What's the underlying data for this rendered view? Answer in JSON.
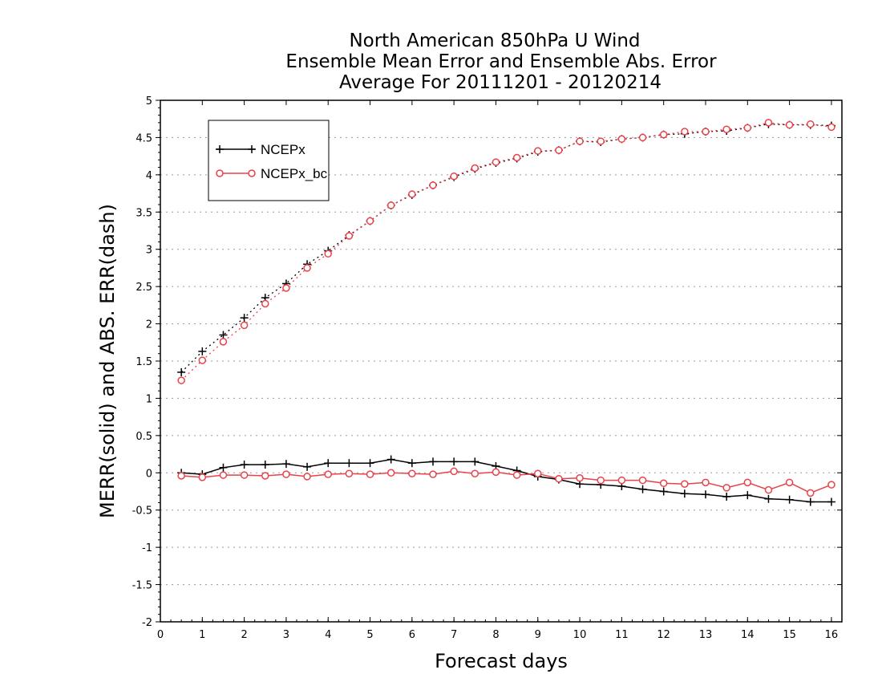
{
  "chart_data": {
    "type": "line",
    "title": "North American 850hPa U Wind",
    "subtitle": [
      "Ensemble Mean Error and Ensemble Abs. Error",
      "Average For 20111201 - 20120214"
    ],
    "xlabel": "Forecast days",
    "ylabel": "MERR(solid) and ABS. ERR(dash)",
    "xlim": [
      0,
      16.25
    ],
    "ylim": [
      -2,
      5
    ],
    "xticks": [
      0,
      1,
      2,
      3,
      4,
      5,
      6,
      7,
      8,
      9,
      10,
      11,
      12,
      13,
      14,
      15,
      16
    ],
    "yticks": [
      -2,
      -1.5,
      -1,
      -0.5,
      0,
      0.5,
      1,
      1.5,
      2,
      2.5,
      3,
      3.5,
      4,
      4.5,
      5
    ],
    "ytick_labels": [
      "-2",
      "-1.5",
      "-1",
      "-0.5",
      "0",
      "0.5",
      "1",
      "1.5",
      "2",
      "2.5",
      "3",
      "3.5",
      "4",
      "4.5",
      "5"
    ],
    "grid": "dotted horizontal",
    "legend": "top-left",
    "x": [
      0.5,
      1.0,
      1.5,
      2.0,
      2.5,
      3.0,
      3.5,
      4.0,
      4.5,
      5.0,
      5.5,
      6.0,
      6.5,
      7.0,
      7.5,
      8.0,
      8.5,
      9.0,
      9.5,
      10.0,
      10.5,
      11.0,
      11.5,
      12.0,
      12.5,
      13.0,
      13.5,
      14.0,
      14.5,
      15.0,
      15.5,
      16.0
    ],
    "series": [
      {
        "name": "NCEPx",
        "color": "#000000",
        "marker": "plus",
        "merr": [
          0.0,
          -0.02,
          0.07,
          0.11,
          0.11,
          0.12,
          0.08,
          0.13,
          0.13,
          0.13,
          0.18,
          0.13,
          0.15,
          0.15,
          0.15,
          0.09,
          0.03,
          -0.05,
          -0.09,
          -0.15,
          -0.16,
          -0.18,
          -0.22,
          -0.25,
          -0.28,
          -0.29,
          -0.32,
          -0.3,
          -0.35,
          -0.36,
          -0.39,
          -0.39
        ],
        "abs_err": [
          1.35,
          1.63,
          1.85,
          2.08,
          2.35,
          2.54,
          2.8,
          2.98,
          3.19,
          3.38,
          3.59,
          3.73,
          3.86,
          3.97,
          4.08,
          4.16,
          4.22,
          4.31,
          4.33,
          4.45,
          4.44,
          4.48,
          4.5,
          4.54,
          4.55,
          4.58,
          4.59,
          4.63,
          4.68,
          4.67,
          4.67,
          4.66
        ]
      },
      {
        "name": "NCEPx_bc",
        "color": "#e8424a",
        "marker": "circle",
        "merr": [
          -0.04,
          -0.06,
          -0.03,
          -0.03,
          -0.04,
          -0.02,
          -0.05,
          -0.02,
          -0.01,
          -0.02,
          0.0,
          -0.01,
          -0.02,
          0.02,
          -0.01,
          0.01,
          -0.03,
          -0.01,
          -0.08,
          -0.07,
          -0.1,
          -0.1,
          -0.1,
          -0.14,
          -0.15,
          -0.13,
          -0.2,
          -0.13,
          -0.23,
          -0.13,
          -0.27,
          -0.16
        ],
        "abs_err": [
          1.24,
          1.51,
          1.76,
          1.98,
          2.27,
          2.48,
          2.75,
          2.94,
          3.18,
          3.38,
          3.59,
          3.74,
          3.86,
          3.98,
          4.09,
          4.17,
          4.23,
          4.32,
          4.33,
          4.45,
          4.45,
          4.48,
          4.5,
          4.54,
          4.58,
          4.58,
          4.61,
          4.63,
          4.7,
          4.67,
          4.68,
          4.64
        ]
      }
    ]
  }
}
